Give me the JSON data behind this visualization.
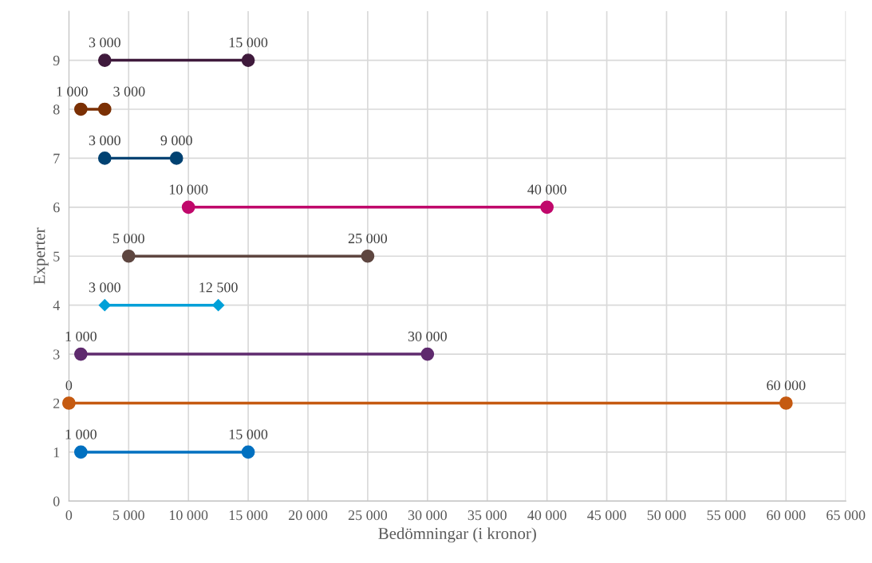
{
  "chart_data": {
    "type": "line",
    "xlabel": "Bedömningar (i kronor)",
    "ylabel": "Experter",
    "xlim": [
      0,
      65000
    ],
    "xticks": [
      0,
      {
        "value": 5000,
        "label": "5 000"
      },
      {
        "value": 10000,
        "label": "10 000"
      },
      {
        "value": 15000,
        "label": "15 000"
      },
      {
        "value": 20000,
        "label": "20 000"
      },
      {
        "value": 25000,
        "label": "25 000"
      },
      {
        "value": 30000,
        "label": "30 000"
      },
      {
        "value": 35000,
        "label": "35 000"
      },
      {
        "value": 40000,
        "label": "40 000"
      },
      {
        "value": 45000,
        "label": "45 000"
      },
      {
        "value": 50000,
        "label": "50 000"
      },
      {
        "value": 55000,
        "label": "55 000"
      },
      {
        "value": 60000,
        "label": "60 000"
      },
      {
        "value": 65000,
        "label": "65 000"
      }
    ],
    "ylim": [
      0,
      10
    ],
    "yticks": [
      0,
      1,
      2,
      3,
      4,
      5,
      6,
      7,
      8,
      9
    ],
    "grid": true,
    "marker": "circle",
    "line_style": "solid",
    "series": [
      {
        "color": "#0070c0",
        "x": [
          1000,
          15000
        ],
        "values": [
          1,
          1
        ]
      },
      {
        "color": "#c55a11",
        "x": [
          0,
          60000
        ],
        "values": [
          2,
          2
        ]
      },
      {
        "color": "#5f2a6e",
        "x": [
          1000,
          30000
        ],
        "values": [
          3,
          3
        ]
      },
      {
        "color": "#00a0d8",
        "x": [
          3000,
          12500
        ],
        "values": [
          4,
          4
        ],
        "marker": "diamond"
      },
      {
        "color": "#5e4640",
        "x": [
          5000,
          25000
        ],
        "values": [
          5,
          5
        ]
      },
      {
        "color": "#c0086b",
        "x": [
          10000,
          40000
        ],
        "values": [
          6,
          6
        ]
      },
      {
        "color": "#004272",
        "x": [
          3000,
          9000
        ],
        "values": [
          7,
          7
        ]
      },
      {
        "color": "#7b3004",
        "x": [
          1000,
          3000
        ],
        "values": [
          8,
          8
        ]
      },
      {
        "color": "#3f1a3c",
        "x": [
          3000,
          15000
        ],
        "values": [
          9,
          9
        ]
      }
    ],
    "annotations": [
      {
        "text": "1 000",
        "x": 1000,
        "y": 1
      },
      {
        "text": "15 000",
        "x": 15000,
        "y": 1
      },
      {
        "text": "0",
        "x": 0,
        "y": 2
      },
      {
        "text": "60 000",
        "x": 60000,
        "y": 2
      },
      {
        "text": "1 000",
        "x": 1000,
        "y": 3
      },
      {
        "text": "30 000",
        "x": 30000,
        "y": 3
      },
      {
        "text": "3 000",
        "x": 3000,
        "y": 4
      },
      {
        "text": "12 500",
        "x": 12500,
        "y": 4
      },
      {
        "text": "5 000",
        "x": 5000,
        "y": 5
      },
      {
        "text": "25 000",
        "x": 25000,
        "y": 5
      },
      {
        "text": "10 000",
        "x": 10000,
        "y": 6
      },
      {
        "text": "40 000",
        "x": 40000,
        "y": 6
      },
      {
        "text": "3 000",
        "x": 3000,
        "y": 7
      },
      {
        "text": "9 000",
        "x": 9000,
        "y": 7
      },
      {
        "text": "1 000",
        "x": 1000,
        "y": 8
      },
      {
        "text": "3 000",
        "x": 3000,
        "y": 8
      },
      {
        "text": "3 000",
        "x": 3000,
        "y": 9
      },
      {
        "text": "15 000",
        "x": 15000,
        "y": 9
      }
    ]
  }
}
